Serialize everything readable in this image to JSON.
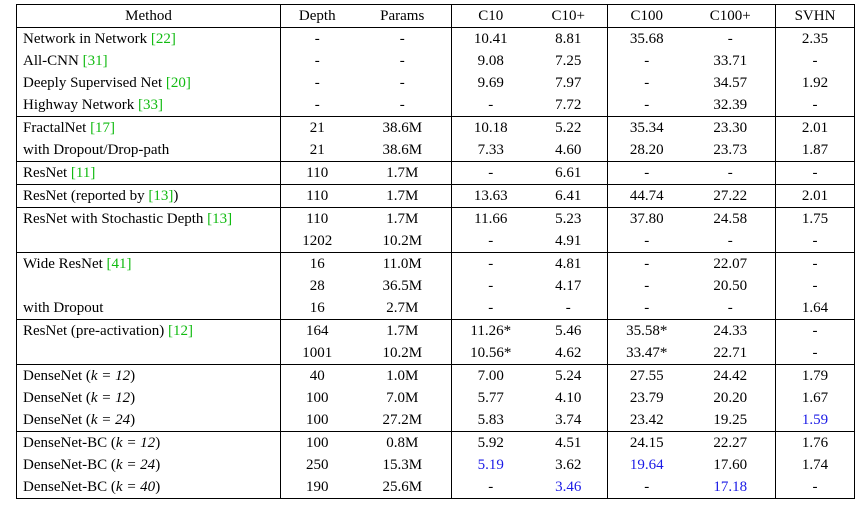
{
  "table": {
    "columns": [
      "Method",
      "Depth",
      "Params",
      "C10",
      "C10+",
      "C100",
      "C100+",
      "SVHN"
    ],
    "groups": [
      {
        "rows": [
          {
            "method": {
              "text": "Network in Network ",
              "cite": "[22]"
            },
            "depth": "-",
            "params": "-",
            "c10": "10.41",
            "c10p": "8.81",
            "c100": "35.68",
            "c100p": "-",
            "svhn": "2.35"
          },
          {
            "method": {
              "text": "All-CNN ",
              "cite": "[31]"
            },
            "depth": "-",
            "params": "-",
            "c10": "9.08",
            "c10p": "7.25",
            "c100": "-",
            "c100p": "33.71",
            "svhn": "-"
          },
          {
            "method": {
              "text": "Deeply Supervised Net ",
              "cite": "[20]"
            },
            "depth": "-",
            "params": "-",
            "c10": "9.69",
            "c10p": "7.97",
            "c100": "-",
            "c100p": "34.57",
            "svhn": "1.92"
          },
          {
            "method": {
              "text": "Highway Network ",
              "cite": "[33]"
            },
            "depth": "-",
            "params": "-",
            "c10": "-",
            "c10p": "7.72",
            "c100": "-",
            "c100p": "32.39",
            "svhn": "-"
          }
        ]
      },
      {
        "rows": [
          {
            "method": {
              "text": "FractalNet ",
              "cite": "[17]"
            },
            "depth": "21",
            "params": "38.6M",
            "c10": "10.18",
            "c10p": "5.22",
            "c100": "35.34",
            "c100p": "23.30",
            "svhn": "2.01"
          },
          {
            "method": {
              "text": "with Dropout/Drop-path"
            },
            "depth": "21",
            "params": "38.6M",
            "c10": "7.33",
            "c10p": "4.60",
            "c100": "28.20",
            "c100p": "23.73",
            "svhn": "1.87"
          }
        ]
      },
      {
        "rows": [
          {
            "method": {
              "text": "ResNet ",
              "cite": "[11]"
            },
            "depth": "110",
            "params": "1.7M",
            "c10": "-",
            "c10p": "6.61",
            "c100": "-",
            "c100p": "-",
            "svhn": "-"
          }
        ]
      },
      {
        "rows": [
          {
            "method": {
              "text": "ResNet (reported by ",
              "cite": "[13]",
              "after": ")"
            },
            "depth": "110",
            "params": "1.7M",
            "c10": "13.63",
            "c10p": "6.41",
            "c100": "44.74",
            "c100p": "27.22",
            "svhn": "2.01"
          }
        ]
      },
      {
        "rows": [
          {
            "method": {
              "text": "ResNet with Stochastic Depth ",
              "cite": "[13]"
            },
            "depth": "110",
            "params": "1.7M",
            "c10": "11.66",
            "c10p": "5.23",
            "c100": "37.80",
            "c100p": "24.58",
            "svhn": "1.75"
          },
          {
            "method": {
              "text": ""
            },
            "depth": "1202",
            "params": "10.2M",
            "c10": "-",
            "c10p": "4.91",
            "c100": "-",
            "c100p": "-",
            "svhn": "-"
          }
        ]
      },
      {
        "rows": [
          {
            "method": {
              "text": "Wide ResNet ",
              "cite": "[41]"
            },
            "depth": "16",
            "params": "11.0M",
            "c10": "-",
            "c10p": "4.81",
            "c100": "-",
            "c100p": "22.07",
            "svhn": "-"
          },
          {
            "method": {
              "text": ""
            },
            "depth": "28",
            "params": "36.5M",
            "c10": "-",
            "c10p": "4.17",
            "c100": "-",
            "c100p": "20.50",
            "svhn": "-"
          },
          {
            "method": {
              "text": "with Dropout"
            },
            "depth": "16",
            "params": "2.7M",
            "c10": "-",
            "c10p": "-",
            "c100": "-",
            "c100p": "-",
            "svhn": "1.64"
          }
        ]
      },
      {
        "rows": [
          {
            "method": {
              "text": "ResNet (pre-activation) ",
              "cite": "[12]"
            },
            "depth": "164",
            "params": "1.7M",
            "c10": "11.26*",
            "c10p": "5.46",
            "c100": "35.58*",
            "c100p": "24.33",
            "svhn": "-"
          },
          {
            "method": {
              "text": ""
            },
            "depth": "1001",
            "params": "10.2M",
            "c10": "10.56*",
            "c10p": "4.62",
            "c100": "33.47*",
            "c100p": "22.71",
            "svhn": "-"
          }
        ]
      },
      {
        "rows": [
          {
            "method": {
              "text": "DenseNet (",
              "k": "k = 12",
              "after": ")"
            },
            "depth": "40",
            "params": "1.0M",
            "c10": "7.00",
            "c10p": "5.24",
            "c100": "27.55",
            "c100p": "24.42",
            "svhn": "1.79"
          },
          {
            "method": {
              "text": "DenseNet (",
              "k": "k = 12",
              "after": ")"
            },
            "depth": "100",
            "params": "7.0M",
            "c10": "5.77",
            "c10p": "4.10",
            "c100": "23.79",
            "c100p": "20.20",
            "svhn": "1.67"
          },
          {
            "method": {
              "text": "DenseNet (",
              "k": "k = 24",
              "after": ")"
            },
            "depth": "100",
            "params": "27.2M",
            "c10": "5.83",
            "c10p": "3.74",
            "c100": "23.42",
            "c100p": "19.25",
            "svhn": "1.59"
          }
        ]
      },
      {
        "rows": [
          {
            "method": {
              "text": "DenseNet-BC (",
              "k": "k = 12",
              "after": ")"
            },
            "depth": "100",
            "params": "0.8M",
            "c10": "5.92",
            "c10p": "4.51",
            "c100": "24.15",
            "c100p": "22.27",
            "svhn": "1.76"
          },
          {
            "method": {
              "text": "DenseNet-BC (",
              "k": "k = 24",
              "after": ")"
            },
            "depth": "250",
            "params": "15.3M",
            "c10": "5.19",
            "c10p": "3.62",
            "c100": "19.64",
            "c100p": "17.60",
            "svhn": "1.74"
          },
          {
            "method": {
              "text": "DenseNet-BC (",
              "k": "k = 40",
              "after": ")"
            },
            "depth": "190",
            "params": "25.6M",
            "c10": "-",
            "c10p": "3.46",
            "c100": "-",
            "c100p": "17.18",
            "svhn": "-"
          }
        ]
      }
    ],
    "bold_cells": [
      [
        7,
        0,
        "c10"
      ],
      [
        7,
        0,
        "c100"
      ],
      [
        7,
        1,
        "c10"
      ],
      [
        7,
        1,
        "c10p"
      ],
      [
        7,
        1,
        "c100"
      ],
      [
        7,
        1,
        "c100p"
      ],
      [
        7,
        2,
        "c10"
      ],
      [
        7,
        2,
        "c10p"
      ],
      [
        7,
        2,
        "c100"
      ],
      [
        7,
        2,
        "c100p"
      ],
      [
        7,
        2,
        "svhn"
      ],
      [
        8,
        0,
        "c10"
      ],
      [
        8,
        0,
        "c100"
      ],
      [
        8,
        1,
        "c10"
      ],
      [
        8,
        1,
        "c10p"
      ],
      [
        8,
        1,
        "c100"
      ],
      [
        8,
        1,
        "c100p"
      ],
      [
        8,
        2,
        "c10p"
      ],
      [
        8,
        2,
        "c100p"
      ]
    ],
    "blue_cells": [
      [
        7,
        2,
        "svhn"
      ],
      [
        8,
        1,
        "c10"
      ],
      [
        8,
        1,
        "c100"
      ],
      [
        8,
        2,
        "c10p"
      ],
      [
        8,
        2,
        "c100p"
      ]
    ],
    "colors": {
      "citation": "#11bb11",
      "best": "#1a1ae6"
    }
  }
}
